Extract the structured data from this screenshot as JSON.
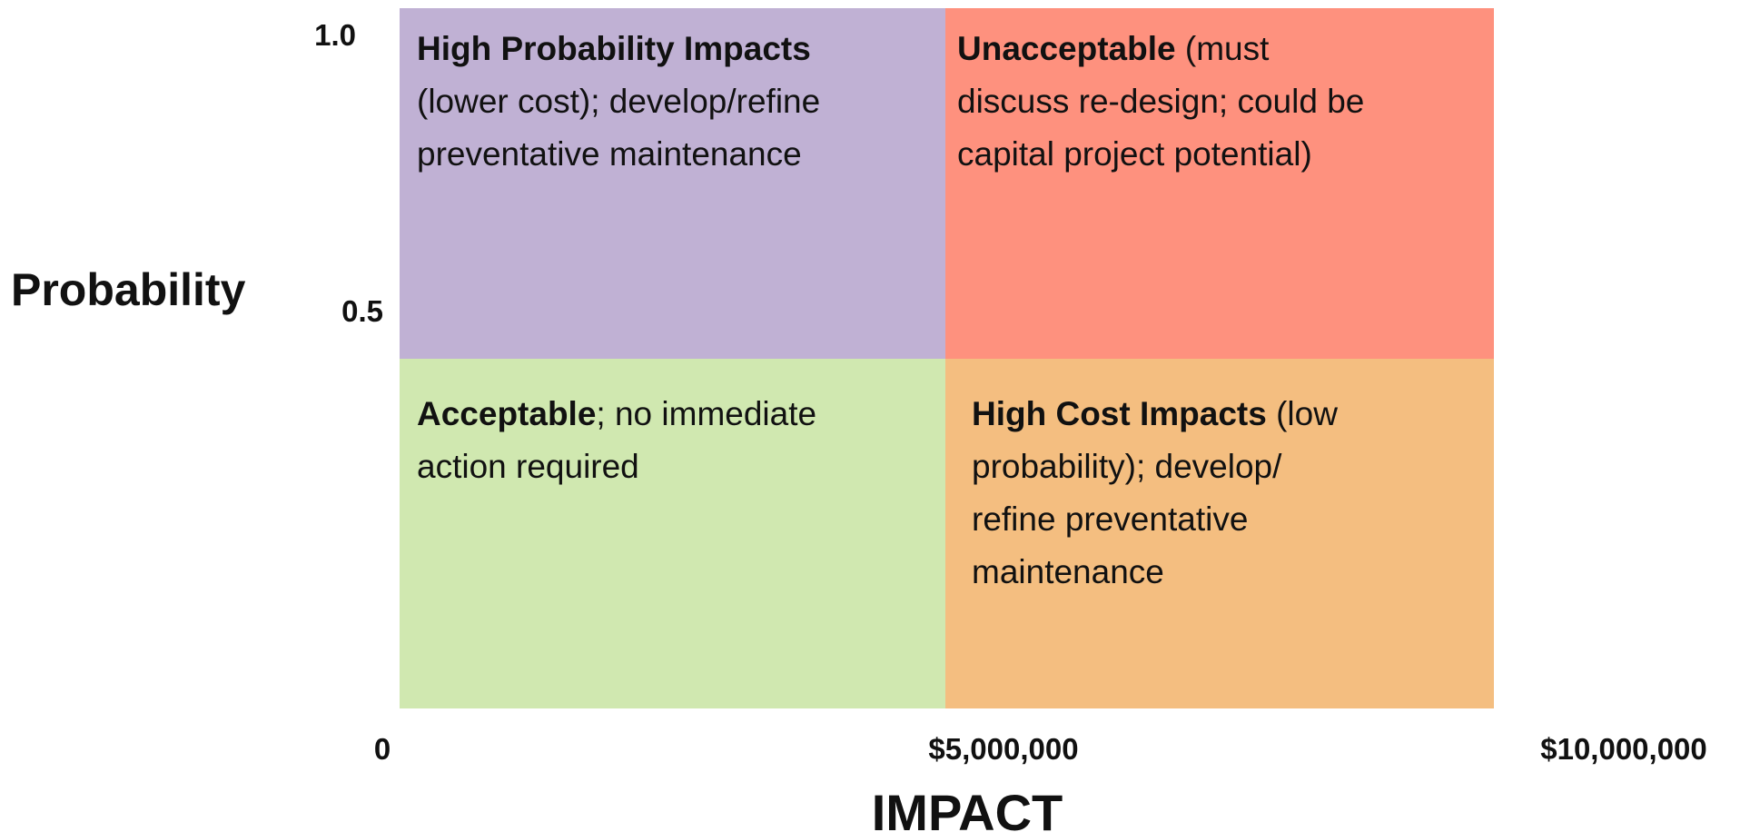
{
  "y_axis": {
    "label": "Probability",
    "ticks": [
      "1.0",
      "0.5"
    ]
  },
  "x_axis": {
    "label": "IMPACT",
    "ticks": [
      "0",
      "$5,000,000",
      "$10,000,000"
    ]
  },
  "quadrants": [
    {
      "color": "#c0b1d4",
      "lines": [
        [
          {
            "text": "High Probability Impacts",
            "bold": true
          }
        ],
        [
          {
            "text": "(lower cost); develop/refine",
            "bold": false
          }
        ],
        [
          {
            "text": "preventative maintenance",
            "bold": false
          }
        ]
      ]
    },
    {
      "color": "#fe917e",
      "lines": [
        [
          {
            "text": "Unacceptable",
            "bold": true
          },
          {
            "text": " (must",
            "bold": false
          }
        ],
        [
          {
            "text": "discuss re-design; could be",
            "bold": false
          }
        ],
        [
          {
            "text": "capital project potential)",
            "bold": false
          }
        ]
      ]
    },
    {
      "color": "#d0e8b0",
      "lines": [
        [
          {
            "text": "Acceptable",
            "bold": true
          },
          {
            "text": "; no immediate",
            "bold": false
          }
        ],
        [
          {
            "text": "action required",
            "bold": false
          }
        ]
      ]
    },
    {
      "color": "#f4be80",
      "lines": [
        [
          {
            "text": "High Cost Impacts",
            "bold": true
          },
          {
            "text": " (low",
            "bold": false
          }
        ],
        [
          {
            "text": "probability); develop/",
            "bold": false
          }
        ],
        [
          {
            "text": "refine preventative",
            "bold": false
          }
        ],
        [
          {
            "text": "maintenance",
            "bold": false
          }
        ]
      ]
    }
  ]
}
